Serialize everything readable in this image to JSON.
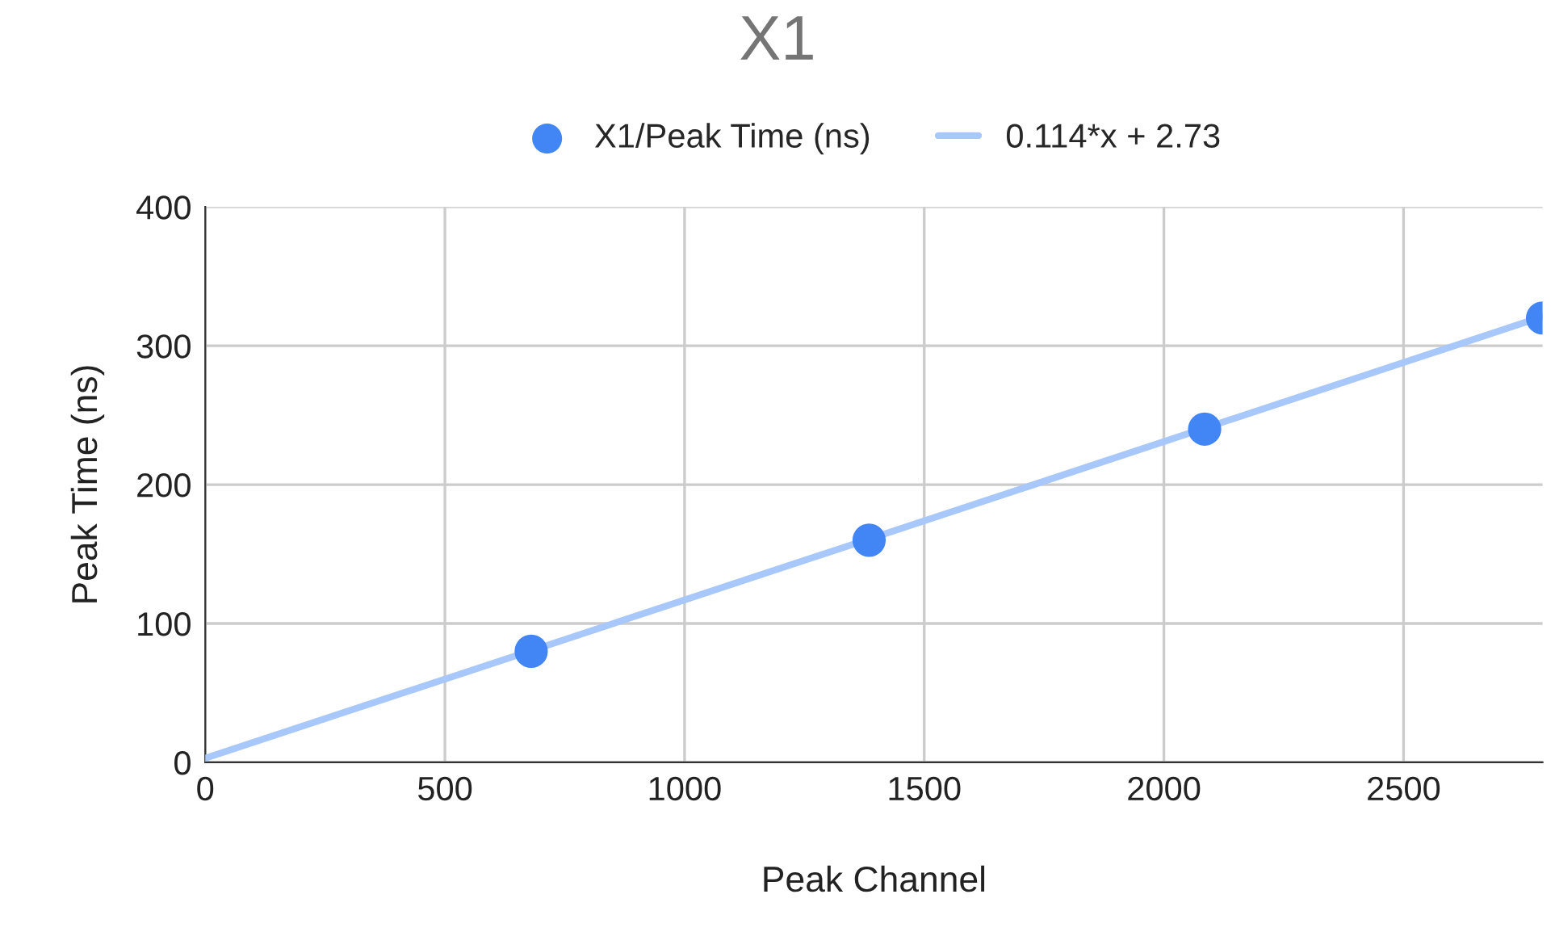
{
  "chart_data": {
    "type": "scatter",
    "title": "X1",
    "xlabel": "Peak Channel",
    "ylabel": "Peak Time (ns)",
    "series": [
      {
        "name": "X1/Peak Time (ns)",
        "color": "#4285f4",
        "marker": "circle",
        "x": [
          680,
          1385,
          2085,
          2790
        ],
        "values": [
          80,
          160,
          240,
          320
        ]
      },
      {
        "name": "0.114*x + 2.73",
        "type": "line",
        "color": "#a8c7fa",
        "x": [
          0,
          2790
        ],
        "values": [
          3,
          321
        ]
      }
    ],
    "xlim": [
      0,
      2790
    ],
    "xticks": [
      0,
      500,
      1000,
      1500,
      2000,
      2500
    ],
    "ylim": [
      0,
      400
    ],
    "yticks": [
      0,
      100,
      200,
      300,
      400
    ],
    "grid": true,
    "legend": "top"
  }
}
